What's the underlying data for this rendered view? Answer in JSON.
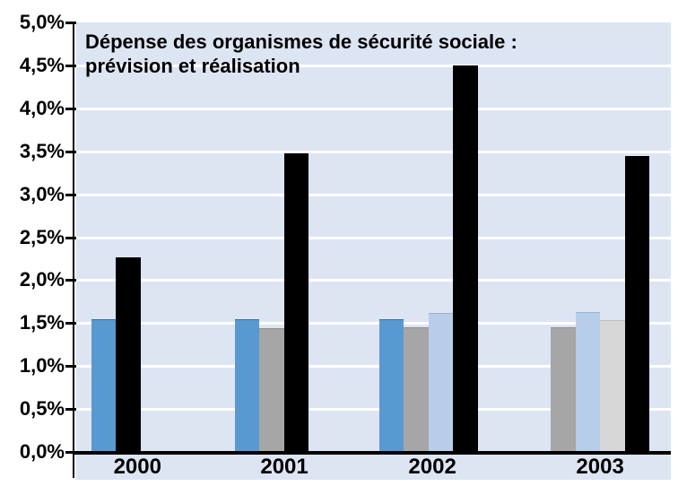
{
  "chart_data": {
    "type": "bar",
    "title": "Dépense des organismes de sécurité sociale : prévision et réalisation",
    "title_line1": "Dépense des organismes de sécurité sociale :",
    "title_line2": "prévision et réalisation",
    "categories": [
      "2000",
      "2001",
      "2002",
      "2003"
    ],
    "series": [
      {
        "name": "barre-bleue",
        "color": "#5999d1",
        "border_color": "#3e6f9e",
        "values": [
          1.55,
          1.55,
          1.55,
          null
        ]
      },
      {
        "name": "barre-grise",
        "color": "#a6a6a6",
        "border_color": "#8c8c8c",
        "values": [
          null,
          1.44,
          1.45,
          1.45
        ]
      },
      {
        "name": "barre-bleu-clair",
        "color": "#b8cee8",
        "border_color": "#9ab4d4",
        "values": [
          null,
          null,
          1.62,
          1.63
        ]
      },
      {
        "name": "barre-gris-clair",
        "color": "#d7d7d7",
        "border_color": "#bfbfbf",
        "values": [
          null,
          null,
          null,
          1.53
        ]
      },
      {
        "name": "barre-noire",
        "color": "#000000",
        "border_color": "#000000",
        "values": [
          2.27,
          3.48,
          4.5,
          3.45
        ]
      }
    ],
    "ylim": [
      0,
      5
    ],
    "ytick_step": 0.5,
    "ytick_labels_top_to_bottom": [
      "5,0%",
      "4,5%",
      "4,0%",
      "3,5%",
      "3,0%",
      "2,5%",
      "2,0%",
      "1,5%",
      "1,0%",
      "0,5%",
      "0,0%"
    ],
    "grid": "horizontal-white-on-light-blue",
    "plot_background_color": "#dde5f3",
    "axis_color": "#000000",
    "legend": "none"
  }
}
